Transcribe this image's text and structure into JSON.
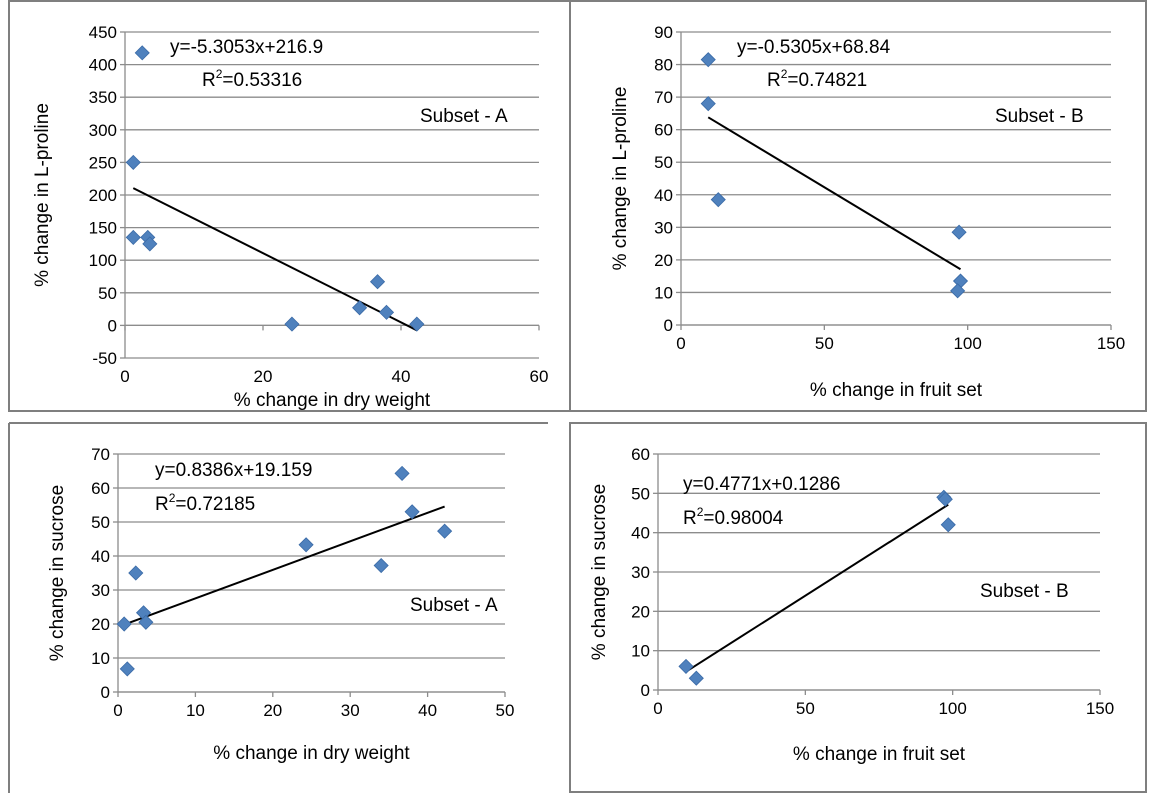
{
  "chart_data": [
    {
      "type": "scatter",
      "title": "",
      "xlabel": "% change in dry weight",
      "ylabel": "% change in L-proline",
      "xlim": [
        0,
        60
      ],
      "ylim": [
        -50,
        450
      ],
      "xticks": [
        0,
        20,
        40,
        60
      ],
      "yticks": [
        -50,
        0,
        50,
        100,
        150,
        200,
        250,
        300,
        350,
        400,
        450
      ],
      "grid": "horizontal",
      "points": [
        {
          "x": 2.5,
          "y": 418
        },
        {
          "x": 1.2,
          "y": 250
        },
        {
          "x": 1.2,
          "y": 135
        },
        {
          "x": 3.3,
          "y": 135
        },
        {
          "x": 3.6,
          "y": 125
        },
        {
          "x": 24.2,
          "y": 2
        },
        {
          "x": 34.0,
          "y": 27
        },
        {
          "x": 36.6,
          "y": 67
        },
        {
          "x": 37.9,
          "y": 20
        },
        {
          "x": 42.3,
          "y": 2
        }
      ],
      "trendline": {
        "x": [
          1.2,
          42.3
        ],
        "equation": "y=-5.3053x+216.9",
        "slope": -5.3053,
        "intercept": 216.9
      },
      "equation_label": "y=-5.3053x+216.9",
      "r2_prefix": "R",
      "r2_value": "=0.53316",
      "subset_label": "Subset - A"
    },
    {
      "type": "scatter",
      "title": "",
      "xlabel": "% change in fruit set",
      "ylabel": "% change in L-proline",
      "xlim": [
        0,
        150
      ],
      "ylim": [
        0,
        90
      ],
      "xticks": [
        0,
        50,
        100,
        150
      ],
      "yticks": [
        0,
        10,
        20,
        30,
        40,
        50,
        60,
        70,
        80,
        90
      ],
      "grid": "horizontal",
      "points": [
        {
          "x": 9.5,
          "y": 81.5
        },
        {
          "x": 9.5,
          "y": 68
        },
        {
          "x": 13,
          "y": 38.5
        },
        {
          "x": 97,
          "y": 28.5
        },
        {
          "x": 97.5,
          "y": 13.5
        },
        {
          "x": 96.5,
          "y": 10.5
        }
      ],
      "trendline": {
        "x": [
          9.5,
          97.5
        ],
        "equation": "y=-0.5305x+68.84",
        "slope": -0.5305,
        "intercept": 68.84
      },
      "equation_label": "y=-0.5305x+68.84",
      "r2_prefix": "R",
      "r2_value": "=0.74821",
      "subset_label": "Subset - B"
    },
    {
      "type": "scatter",
      "title": "",
      "xlabel": "% change in dry weight",
      "ylabel": "% change in sucrose",
      "xlim": [
        0,
        50
      ],
      "ylim": [
        0,
        70
      ],
      "xticks": [
        0,
        10,
        20,
        30,
        40,
        50
      ],
      "yticks": [
        0,
        10,
        20,
        30,
        40,
        50,
        60,
        70
      ],
      "grid": "horizontal",
      "points": [
        {
          "x": 0.8,
          "y": 20
        },
        {
          "x": 1.2,
          "y": 6.8
        },
        {
          "x": 2.3,
          "y": 35
        },
        {
          "x": 3.3,
          "y": 23.3
        },
        {
          "x": 3.6,
          "y": 20.5
        },
        {
          "x": 24.3,
          "y": 43.3
        },
        {
          "x": 34.0,
          "y": 37.2
        },
        {
          "x": 36.7,
          "y": 64.3
        },
        {
          "x": 38.0,
          "y": 53
        },
        {
          "x": 42.2,
          "y": 47.3
        }
      ],
      "trendline": {
        "x": [
          0.8,
          42.2
        ],
        "equation": "y=0.8386x+19.159",
        "slope": 0.8386,
        "intercept": 19.159
      },
      "equation_label": "y=0.8386x+19.159",
      "r2_prefix": "R",
      "r2_value": "=0.72185",
      "subset_label": "Subset - A"
    },
    {
      "type": "scatter",
      "title": "",
      "xlabel": "% change in fruit set",
      "ylabel": "% change in sucrose",
      "xlim": [
        0,
        150
      ],
      "ylim": [
        0,
        60
      ],
      "xticks": [
        0,
        50,
        100,
        150
      ],
      "yticks": [
        0,
        10,
        20,
        30,
        40,
        50,
        60
      ],
      "grid": "horizontal",
      "points": [
        {
          "x": 9.5,
          "y": 6
        },
        {
          "x": 13,
          "y": 3
        },
        {
          "x": 97,
          "y": 49
        },
        {
          "x": 97.5,
          "y": 48.5
        },
        {
          "x": 98.5,
          "y": 42
        }
      ],
      "trendline": {
        "x": [
          9.5,
          98.5
        ],
        "equation": "y=0.4771x+0.1286",
        "slope": 0.4771,
        "intercept": 0.1286
      },
      "equation_label": "y=0.4771x+0.1286",
      "r2_prefix": "R",
      "r2_value": "=0.98004",
      "subset_label": "Subset - B"
    }
  ],
  "colors": {
    "marker": "#4f81bd",
    "marker_stroke": "#3a6aa6",
    "trendline": "#000000",
    "grid": "#8c8c8c",
    "axis": "#8c8c8c",
    "panel_border": "#7f7f7f"
  }
}
